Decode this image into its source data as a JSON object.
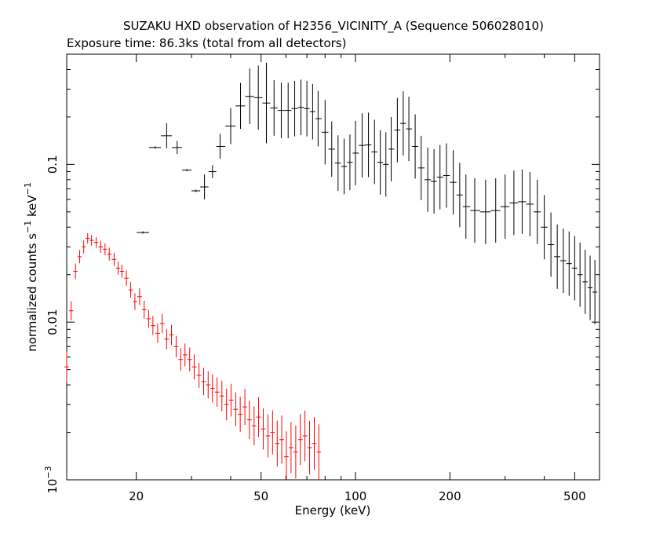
{
  "chart_data": {
    "type": "scatter",
    "title": "SUZAKU HXD observation of H2356_VICINITY_A (Sequence 506028010)",
    "subtitle": "Exposure time: 86.3ks (total from all detectors)",
    "xlabel": "Energy (keV)",
    "ylabel_main": "normalized counts s",
    "ylabel_exp1": "−1",
    "ylabel_mid": " keV",
    "ylabel_exp2": "−1",
    "x_scale": "log",
    "y_scale": "log",
    "xlim": [
      12,
      600
    ],
    "ylim": [
      0.001,
      0.5
    ],
    "x_ticks": [
      {
        "value": 20,
        "label": "20"
      },
      {
        "value": 50,
        "label": "50"
      },
      {
        "value": 100,
        "label": "100"
      },
      {
        "value": 200,
        "label": "200"
      },
      {
        "value": 500,
        "label": "500"
      }
    ],
    "y_ticks": [
      {
        "value": 0.001,
        "label_base": "10",
        "label_exp": "−3"
      },
      {
        "value": 0.01,
        "label_base": "0.01",
        "label_exp": ""
      },
      {
        "value": 0.1,
        "label_base": "0.1",
        "label_exp": ""
      }
    ],
    "grid": false,
    "series": [
      {
        "color": "#000000",
        "points": [
          [
            21,
            0.037,
            1.0
          ],
          [
            23,
            0.128,
            1.0
          ],
          [
            25,
            0.152,
            1.2
          ],
          [
            27,
            0.128,
            1.1
          ],
          [
            29,
            0.092,
            1.0
          ],
          [
            31,
            0.068,
            1.0
          ],
          [
            33,
            0.072,
            1.2
          ],
          [
            35,
            0.09,
            1.1
          ],
          [
            37,
            0.13,
            1.2
          ],
          [
            40,
            0.175,
            1.3
          ],
          [
            43,
            0.235,
            1.4
          ],
          [
            46,
            0.27,
            1.5
          ],
          [
            49,
            0.265,
            1.6
          ],
          [
            52,
            0.245,
            1.8
          ],
          [
            55,
            0.228,
            1.5
          ],
          [
            58,
            0.22,
            1.5
          ],
          [
            61,
            0.22,
            1.5
          ],
          [
            64,
            0.226,
            1.5
          ],
          [
            67,
            0.23,
            1.5
          ],
          [
            70,
            0.226,
            1.5
          ],
          [
            73,
            0.216,
            1.5
          ],
          [
            76,
            0.195,
            1.5
          ],
          [
            80,
            0.16,
            1.6
          ],
          [
            84,
            0.125,
            1.5
          ],
          [
            88,
            0.102,
            1.5
          ],
          [
            92,
            0.097,
            1.5
          ],
          [
            96,
            0.103,
            1.5
          ],
          [
            100,
            0.118,
            1.6
          ],
          [
            105,
            0.132,
            1.6
          ],
          [
            110,
            0.133,
            1.6
          ],
          [
            115,
            0.12,
            1.6
          ],
          [
            120,
            0.103,
            1.6
          ],
          [
            125,
            0.1,
            1.6
          ],
          [
            130,
            0.125,
            1.6
          ],
          [
            136,
            0.165,
            1.6
          ],
          [
            142,
            0.182,
            1.6
          ],
          [
            148,
            0.168,
            1.6
          ],
          [
            155,
            0.13,
            1.6
          ],
          [
            162,
            0.095,
            1.6
          ],
          [
            170,
            0.08,
            1.6
          ],
          [
            178,
            0.078,
            1.6
          ],
          [
            186,
            0.083,
            1.6
          ],
          [
            195,
            0.085,
            1.6
          ],
          [
            205,
            0.077,
            1.6
          ],
          [
            215,
            0.064,
            1.6
          ],
          [
            225,
            0.054,
            1.6
          ],
          [
            240,
            0.051,
            1.6
          ],
          [
            260,
            0.05,
            1.6
          ],
          [
            280,
            0.051,
            1.6
          ],
          [
            300,
            0.054,
            1.6
          ],
          [
            320,
            0.057,
            1.6
          ],
          [
            340,
            0.058,
            1.6
          ],
          [
            360,
            0.056,
            1.6
          ],
          [
            380,
            0.05,
            1.6
          ],
          [
            400,
            0.04,
            1.6
          ],
          [
            420,
            0.031,
            1.6
          ],
          [
            440,
            0.026,
            1.6
          ],
          [
            460,
            0.0245,
            1.6
          ],
          [
            480,
            0.0235,
            1.6
          ],
          [
            500,
            0.022,
            1.6
          ],
          [
            520,
            0.02,
            1.6
          ],
          [
            540,
            0.018,
            1.6
          ],
          [
            560,
            0.0165,
            1.6
          ],
          [
            580,
            0.0155,
            1.6
          ]
        ]
      },
      {
        "color": "#ff0000",
        "points": [
          [
            12.0,
            0.0052,
            1.25
          ],
          [
            12.4,
            0.0118,
            1.15
          ],
          [
            12.8,
            0.021,
            1.12
          ],
          [
            13.2,
            0.026,
            1.1
          ],
          [
            13.6,
            0.03,
            1.1
          ],
          [
            14.0,
            0.034,
            1.08
          ],
          [
            14.4,
            0.033,
            1.08
          ],
          [
            14.9,
            0.032,
            1.08
          ],
          [
            15.4,
            0.03,
            1.09
          ],
          [
            15.9,
            0.029,
            1.09
          ],
          [
            16.4,
            0.027,
            1.1
          ],
          [
            17.0,
            0.025,
            1.1
          ],
          [
            17.5,
            0.022,
            1.1
          ],
          [
            18.0,
            0.021,
            1.1
          ],
          [
            18.6,
            0.019,
            1.12
          ],
          [
            19.2,
            0.016,
            1.12
          ],
          [
            19.8,
            0.0135,
            1.13
          ],
          [
            20.5,
            0.0145,
            1.13
          ],
          [
            21.2,
            0.012,
            1.14
          ],
          [
            21.9,
            0.0105,
            1.14
          ],
          [
            22.6,
            0.0095,
            1.15
          ],
          [
            23.4,
            0.0085,
            1.15
          ],
          [
            24.2,
            0.0098,
            1.15
          ],
          [
            25.0,
            0.0078,
            1.16
          ],
          [
            25.9,
            0.0083,
            1.16
          ],
          [
            26.8,
            0.007,
            1.17
          ],
          [
            27.7,
            0.0058,
            1.18
          ],
          [
            28.6,
            0.0062,
            1.18
          ],
          [
            29.6,
            0.0058,
            1.19
          ],
          [
            30.6,
            0.0052,
            1.2
          ],
          [
            31.7,
            0.0046,
            1.2
          ],
          [
            32.8,
            0.0042,
            1.22
          ],
          [
            33.9,
            0.004,
            1.22
          ],
          [
            35.0,
            0.0038,
            1.23
          ],
          [
            36.2,
            0.0036,
            1.24
          ],
          [
            37.5,
            0.0034,
            1.25
          ],
          [
            38.8,
            0.003,
            1.26
          ],
          [
            40.1,
            0.0032,
            1.27
          ],
          [
            41.5,
            0.0028,
            1.28
          ],
          [
            42.9,
            0.0026,
            1.29
          ],
          [
            44.4,
            0.0029,
            1.3
          ],
          [
            45.9,
            0.0024,
            1.32
          ],
          [
            47.5,
            0.0022,
            1.33
          ],
          [
            49.1,
            0.0025,
            1.34
          ],
          [
            50.8,
            0.0021,
            1.35
          ],
          [
            52.6,
            0.0019,
            1.37
          ],
          [
            54.4,
            0.002,
            1.38
          ],
          [
            56.3,
            0.0017,
            1.4
          ],
          [
            58.2,
            0.0018,
            1.42
          ],
          [
            60.2,
            0.0014,
            1.45
          ],
          [
            62.3,
            0.0016,
            1.45
          ],
          [
            64.5,
            0.0015,
            1.47
          ],
          [
            66.7,
            0.0018,
            1.45
          ],
          [
            69.0,
            0.0019,
            1.45
          ],
          [
            71.4,
            0.0016,
            1.48
          ],
          [
            73.9,
            0.0017,
            1.47
          ],
          [
            76.4,
            0.0015,
            1.5
          ]
        ]
      }
    ]
  }
}
